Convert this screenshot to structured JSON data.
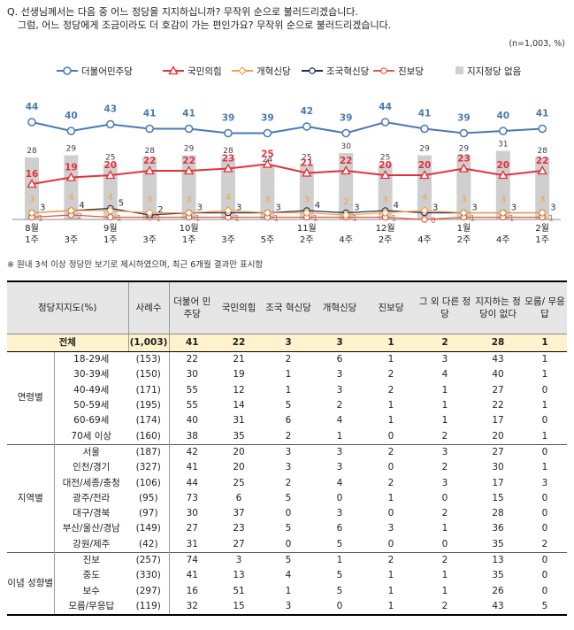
{
  "question": {
    "line1": "Q. 선생님께서는 다음 중 어느 정당을 지지하십니까? 무작위 순으로 불러드리겠습니다.",
    "line2": "그럼, 어느 정당에게 조금이라도 더 호감이 가는 편인가요? 무작위 순으로 불러드리겠습니다."
  },
  "sample_note": "(n=1,003, %)",
  "footnote": "※ 원내 3석 이상 정당만 보기로 제시하였으며, 최근 6개월 결과만 표시함",
  "colors": {
    "democratic": "#4a78b5",
    "ppp": "#e5303a",
    "reform": "#f5a040",
    "rebuild": "#1f2b4d",
    "progressive": "#e55a3c",
    "none": "#cfcfcf",
    "header_bg": "#e6e6e6",
    "total_bg": "#fff2cc"
  },
  "chart_data": {
    "type": "line",
    "categories": [
      [
        "8월",
        "1주"
      ],
      [
        "",
        "3주"
      ],
      [
        "9월",
        "1주"
      ],
      [
        "",
        "3주"
      ],
      [
        "10월",
        "1주"
      ],
      [
        "",
        "3주"
      ],
      [
        "",
        "5주"
      ],
      [
        "11월",
        "2주"
      ],
      [
        "",
        "4주"
      ],
      [
        "12월",
        "2주"
      ],
      [
        "",
        "4주"
      ],
      [
        "1월",
        "2주"
      ],
      [
        "",
        "4주"
      ],
      [
        "2월",
        "1주"
      ]
    ],
    "legend_position": "top",
    "series": [
      {
        "name": "더불어민주당",
        "type": "line",
        "marker": "circle",
        "color": "#4a78b5",
        "values": [
          44,
          40,
          43,
          41,
          41,
          39,
          39,
          42,
          39,
          44,
          41,
          39,
          40,
          41
        ]
      },
      {
        "name": "국민의힘",
        "type": "line",
        "marker": "triangle",
        "color": "#e5303a",
        "values": [
          16,
          19,
          20,
          22,
          22,
          23,
          25,
          21,
          22,
          20,
          20,
          23,
          20,
          22
        ]
      },
      {
        "name": "개혁신당",
        "type": "line",
        "marker": "diamond",
        "color": "#f5a040",
        "values": [
          3,
          4,
          4,
          3,
          3,
          4,
          3,
          3,
          2,
          3,
          4,
          3,
          3,
          3
        ]
      },
      {
        "name": "조국혁신당",
        "type": "line",
        "marker": "circle-open",
        "color": "#1f2b4d",
        "values": [
          3,
          4,
          5,
          2,
          3,
          3,
          3,
          4,
          3,
          4,
          3,
          3,
          3,
          3
        ]
      },
      {
        "name": "진보당",
        "type": "line",
        "marker": "circle-open",
        "color": "#e55a3c",
        "values": [
          1,
          2,
          1,
          1,
          1,
          1,
          1,
          1,
          1,
          1,
          0,
          1,
          1,
          1
        ]
      },
      {
        "name": "지지정당 없음",
        "type": "bar",
        "color": "#cfcfcf",
        "values": [
          28,
          29,
          25,
          28,
          29,
          28,
          24,
          25,
          30,
          25,
          29,
          29,
          31,
          28
        ]
      }
    ],
    "ylim": [
      0,
      50
    ]
  },
  "table": {
    "headers": [
      "정당지지도(%)",
      "사례수",
      "더불어 민주당",
      "국민의힘",
      "조국 혁신당",
      "개혁신당",
      "진보당",
      "그 외 다른 정당",
      "지지하는 정당이 없다",
      "모름/ 무응답"
    ],
    "total": {
      "label": "전체",
      "n": "(1,003)",
      "values": [
        "41",
        "22",
        "3",
        "3",
        "1",
        "2",
        "28",
        "1"
      ]
    },
    "groups": [
      {
        "name": "연령별",
        "rows": [
          {
            "label": "18-29세",
            "n": "(153)",
            "values": [
              "22",
              "21",
              "2",
              "6",
              "1",
              "3",
              "43",
              "1"
            ]
          },
          {
            "label": "30-39세",
            "n": "(150)",
            "values": [
              "30",
              "19",
              "1",
              "3",
              "2",
              "4",
              "40",
              "1"
            ]
          },
          {
            "label": "40-49세",
            "n": "(171)",
            "values": [
              "55",
              "12",
              "1",
              "3",
              "2",
              "1",
              "27",
              "0"
            ]
          },
          {
            "label": "50-59세",
            "n": "(195)",
            "values": [
              "55",
              "14",
              "5",
              "2",
              "1",
              "1",
              "22",
              "1"
            ]
          },
          {
            "label": "60-69세",
            "n": "(174)",
            "values": [
              "40",
              "31",
              "6",
              "4",
              "1",
              "1",
              "17",
              "0"
            ]
          },
          {
            "label": "70세 이상",
            "n": "(160)",
            "values": [
              "38",
              "35",
              "2",
              "1",
              "0",
              "2",
              "20",
              "1"
            ]
          }
        ]
      },
      {
        "name": "지역별",
        "rows": [
          {
            "label": "서울",
            "n": "(187)",
            "values": [
              "42",
              "20",
              "3",
              "3",
              "2",
              "3",
              "27",
              "0"
            ]
          },
          {
            "label": "인천/경기",
            "n": "(327)",
            "values": [
              "41",
              "20",
              "3",
              "3",
              "0",
              "2",
              "30",
              "1"
            ]
          },
          {
            "label": "대전/세종/충청",
            "n": "(106)",
            "values": [
              "44",
              "25",
              "2",
              "4",
              "2",
              "3",
              "17",
              "3"
            ]
          },
          {
            "label": "광주/전라",
            "n": "(95)",
            "values": [
              "73",
              "6",
              "5",
              "0",
              "1",
              "0",
              "15",
              "0"
            ]
          },
          {
            "label": "대구/경북",
            "n": "(97)",
            "values": [
              "30",
              "37",
              "0",
              "3",
              "0",
              "2",
              "28",
              "0"
            ]
          },
          {
            "label": "부산/울산/경남",
            "n": "(149)",
            "values": [
              "27",
              "23",
              "5",
              "6",
              "3",
              "1",
              "36",
              "0"
            ]
          },
          {
            "label": "강원/제주",
            "n": "(42)",
            "values": [
              "31",
              "27",
              "0",
              "5",
              "0",
              "0",
              "35",
              "2"
            ]
          }
        ]
      },
      {
        "name": "이념 성향별",
        "rows": [
          {
            "label": "진보",
            "n": "(257)",
            "values": [
              "74",
              "3",
              "5",
              "1",
              "2",
              "2",
              "13",
              "0"
            ]
          },
          {
            "label": "중도",
            "n": "(330)",
            "values": [
              "41",
              "13",
              "4",
              "5",
              "1",
              "1",
              "35",
              "0"
            ]
          },
          {
            "label": "보수",
            "n": "(297)",
            "values": [
              "16",
              "51",
              "1",
              "5",
              "1",
              "1",
              "26",
              "0"
            ]
          },
          {
            "label": "모름/무응답",
            "n": "(119)",
            "values": [
              "32",
              "15",
              "3",
              "0",
              "1",
              "2",
              "43",
              "5"
            ]
          }
        ]
      }
    ]
  }
}
